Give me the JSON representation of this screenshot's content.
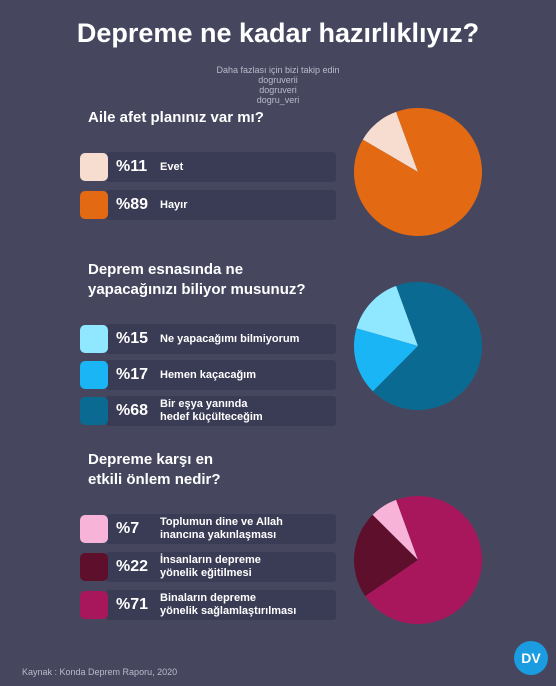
{
  "title": "Depreme ne kadar hazırlıklıyız?",
  "follow": "Daha fazlası için bizi takip edin",
  "social": [
    "dogruverii",
    "dogruveri",
    "dogru_veri"
  ],
  "source": "Kaynak : Konda Deprem Raporu, 2020",
  "logo": "DV",
  "chart_data": [
    {
      "type": "pie",
      "title": "Aile afet planınız var mı?",
      "categories": [
        "Evet",
        "Hayır"
      ],
      "values": [
        11,
        89
      ],
      "value_labels": [
        "%11",
        "%89"
      ],
      "colors": [
        "#f6ddd0",
        "#e36a12"
      ]
    },
    {
      "type": "pie",
      "title": "Deprem esnasında ne\nyapacağınızı biliyor musunuz?",
      "categories": [
        "Ne yapacağımı bilmiyorum",
        "Hemen kaçacağım",
        "Bir eşya yanında\nhedef küçülteceğim"
      ],
      "values": [
        15,
        17,
        68
      ],
      "value_labels": [
        "%15",
        "%17",
        "%68"
      ],
      "colors": [
        "#8fe8ff",
        "#19b5f5",
        "#0a6a92"
      ]
    },
    {
      "type": "pie",
      "title": "Depreme karşı en\netkili önlem nedir?",
      "categories": [
        "Toplumun dine ve Allah\ninancına yakınlaşması",
        "İnsanların depreme\nyönelik eğitilmesi",
        "Binaların depreme\nyönelik sağlamlaştırılması"
      ],
      "values": [
        7,
        22,
        71
      ],
      "value_labels": [
        "%7",
        "%22",
        "%71"
      ],
      "colors": [
        "#f7b4d8",
        "#5d0f2c",
        "#a8175b"
      ]
    }
  ]
}
